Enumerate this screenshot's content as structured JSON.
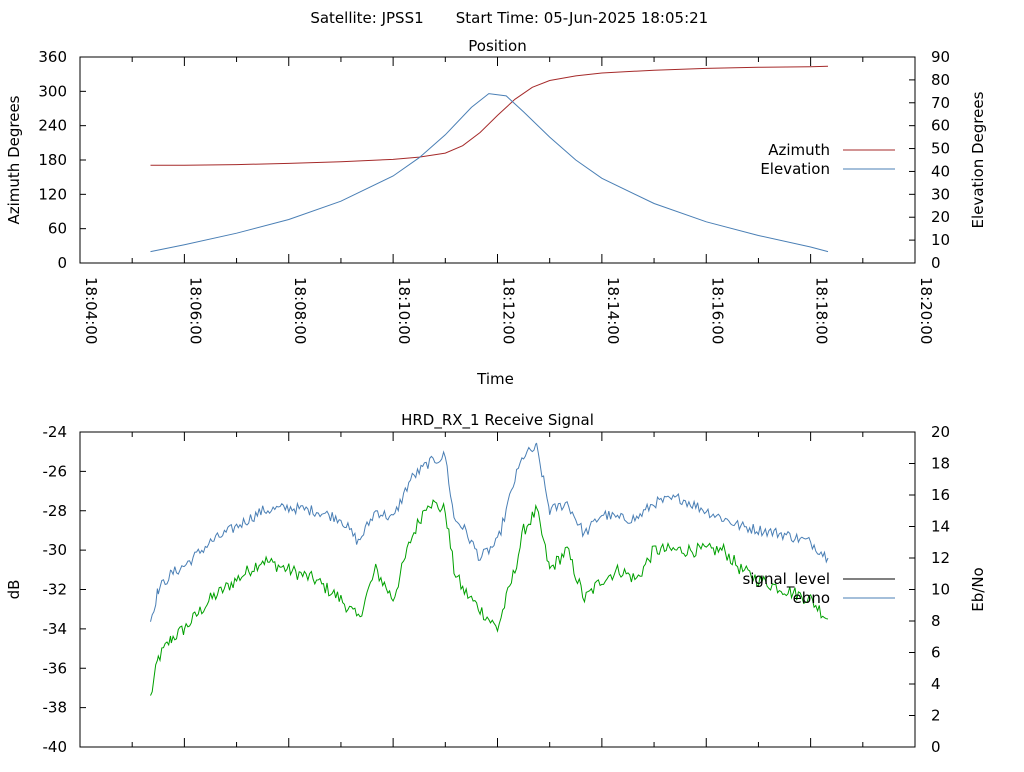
{
  "header": {
    "satellite": "Satellite: JPSS1",
    "start_time": "Start Time: 05-Jun-2025 18:05:21"
  },
  "chart_data": [
    {
      "type": "line",
      "title": "Position",
      "xlabel": "Time",
      "ylabel": "Azimuth Degrees",
      "y2label": "Elevation Degrees",
      "xlim": [
        "18:04:00",
        "18:20:00"
      ],
      "ylim": [
        0,
        360
      ],
      "y2lim": [
        0,
        90
      ],
      "x_ticks": [
        "18:04:00",
        "18:06:00",
        "18:08:00",
        "18:10:00",
        "18:12:00",
        "18:14:00",
        "18:16:00",
        "18:18:00",
        "18:20:00"
      ],
      "y_ticks": [
        0,
        60,
        120,
        180,
        240,
        300,
        360
      ],
      "y2_ticks": [
        0,
        10,
        20,
        30,
        40,
        50,
        60,
        70,
        80,
        90
      ],
      "legend_position": "right",
      "grid": false,
      "series": [
        {
          "name": "Azimuth",
          "axis": "y",
          "color": "#a52a2a",
          "x": [
            "18:05:21",
            "18:06:00",
            "18:07:00",
            "18:08:00",
            "18:09:00",
            "18:10:00",
            "18:10:30",
            "18:11:00",
            "18:11:20",
            "18:11:40",
            "18:12:00",
            "18:12:20",
            "18:12:40",
            "18:13:00",
            "18:13:30",
            "18:14:00",
            "18:15:00",
            "18:16:00",
            "18:17:00",
            "18:18:00",
            "18:18:20"
          ],
          "values": [
            171,
            171,
            172,
            174,
            177,
            181,
            185,
            192,
            205,
            228,
            258,
            286,
            307,
            319,
            327,
            332,
            337,
            340,
            342,
            343,
            344
          ]
        },
        {
          "name": "Elevation",
          "axis": "y2",
          "color": "#4a7fb5",
          "x": [
            "18:05:21",
            "18:06:00",
            "18:07:00",
            "18:08:00",
            "18:09:00",
            "18:10:00",
            "18:10:30",
            "18:11:00",
            "18:11:30",
            "18:11:50",
            "18:12:10",
            "18:12:30",
            "18:13:00",
            "18:13:30",
            "18:14:00",
            "18:15:00",
            "18:16:00",
            "18:17:00",
            "18:18:00",
            "18:18:20"
          ],
          "values": [
            5,
            8,
            13,
            19,
            27,
            38,
            46,
            56,
            68,
            74,
            73,
            66,
            55,
            45,
            37,
            26,
            18,
            12,
            7,
            5
          ]
        }
      ]
    },
    {
      "type": "line",
      "title": "HRD_RX_1 Receive Signal",
      "xlabel": "",
      "ylabel": "dB",
      "y2label": "Eb/No",
      "xlim": [
        "18:04:00",
        "18:20:00"
      ],
      "ylim": [
        -40,
        -24
      ],
      "y2lim": [
        0,
        20
      ],
      "y_ticks": [
        -40,
        -38,
        -36,
        -34,
        -32,
        -30,
        -28,
        -26,
        -24
      ],
      "y2_ticks": [
        0,
        2,
        4,
        6,
        8,
        10,
        12,
        14,
        16,
        18,
        20
      ],
      "legend_position": "right",
      "grid": false,
      "series": [
        {
          "name": "signal_level",
          "axis": "y",
          "color": "#00a000",
          "x": [
            "18:05:21",
            "18:05:30",
            "18:05:45",
            "18:06:00",
            "18:06:30",
            "18:07:00",
            "18:07:30",
            "18:08:00",
            "18:08:30",
            "18:09:00",
            "18:09:20",
            "18:09:40",
            "18:10:00",
            "18:10:20",
            "18:10:40",
            "18:11:00",
            "18:11:10",
            "18:11:20",
            "18:11:40",
            "18:12:00",
            "18:12:20",
            "18:12:30",
            "18:12:45",
            "18:13:00",
            "18:13:20",
            "18:13:40",
            "18:14:00",
            "18:14:20",
            "18:14:40",
            "18:15:00",
            "18:15:30",
            "18:16:00",
            "18:16:20",
            "18:16:40",
            "18:17:00",
            "18:17:30",
            "18:18:00",
            "18:18:20"
          ],
          "values": [
            -37.5,
            -35.5,
            -34.5,
            -34,
            -32.5,
            -31.5,
            -30.5,
            -31,
            -31.5,
            -32.5,
            -33.5,
            -31,
            -32.5,
            -29.5,
            -27.5,
            -28,
            -31,
            -32,
            -33,
            -34,
            -31,
            -29,
            -28,
            -31,
            -30,
            -32.5,
            -31.5,
            -31,
            -31.5,
            -30,
            -30,
            -30,
            -30,
            -31,
            -31.5,
            -32,
            -32.5,
            -33.5
          ]
        },
        {
          "name": "ebno",
          "axis": "y2",
          "color": "#4a7fb5",
          "x": [
            "18:05:21",
            "18:05:30",
            "18:05:45",
            "18:06:00",
            "18:06:30",
            "18:07:00",
            "18:07:30",
            "18:08:00",
            "18:08:30",
            "18:09:00",
            "18:09:20",
            "18:09:40",
            "18:10:00",
            "18:10:20",
            "18:10:40",
            "18:11:00",
            "18:11:10",
            "18:11:20",
            "18:11:40",
            "18:12:00",
            "18:12:20",
            "18:12:30",
            "18:12:45",
            "18:13:00",
            "18:13:20",
            "18:13:40",
            "18:14:00",
            "18:14:20",
            "18:14:40",
            "18:15:00",
            "18:15:30",
            "18:16:00",
            "18:16:20",
            "18:16:40",
            "18:17:00",
            "18:17:30",
            "18:18:00",
            "18:18:20"
          ],
          "values": [
            8,
            10,
            11,
            11.5,
            13,
            14,
            15,
            15.2,
            15,
            14.5,
            13,
            15,
            14.5,
            17,
            18,
            18.5,
            14.5,
            14,
            12,
            13,
            17,
            18.5,
            19,
            15,
            15.5,
            13.5,
            14.8,
            14.5,
            14.5,
            15.5,
            15.8,
            15,
            14.5,
            14,
            13.8,
            13.5,
            13,
            12
          ]
        }
      ]
    }
  ]
}
